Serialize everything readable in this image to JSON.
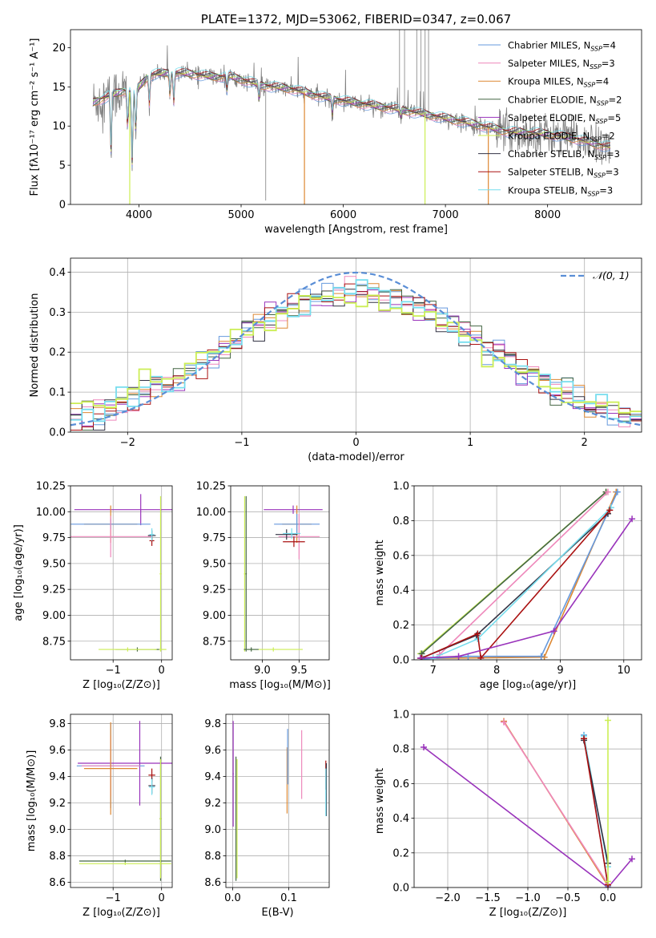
{
  "palette": {
    "chab_miles": "#6699dd",
    "salp_miles": "#ee88bb",
    "krou_miles": "#dd8833",
    "chab_elodie": "#446644",
    "salp_elodie": "#9933bb",
    "krou_elodie": "#ccee55",
    "chab_stelib": "#333344",
    "salp_stelib": "#aa1111",
    "krou_stelib": "#77ddee",
    "data": "#808080",
    "gauss": "#5a8ed6"
  },
  "chart_data": [
    {
      "id": "spectrum",
      "type": "line",
      "title": "PLATE=1372, MJD=53062, FIBERID=0347, z=0.067",
      "xlabel": "wavelength [Angstrom, rest frame]",
      "ylabel": "Flux [fλ10⁻¹⁷ erg cm⁻² s⁻¹ A⁻¹]",
      "xlim": [
        3330,
        8920
      ],
      "ylim": [
        0,
        22.3
      ],
      "xticks": [
        4000,
        5000,
        6000,
        7000,
        8000
      ],
      "yticks": [
        0,
        5,
        10,
        15,
        20
      ],
      "grid": false,
      "legend": {
        "placement": "top-right",
        "entries": [
          {
            "label": "Chabrier MILES, N",
            "sub": "SSP",
            "val": "=4",
            "color": "chab_miles"
          },
          {
            "label": "Salpeter MILES, N",
            "sub": "SSP",
            "val": "=3",
            "color": "salp_miles"
          },
          {
            "label": "Kroupa MILES, N",
            "sub": "SSP",
            "val": "=4",
            "color": "krou_miles"
          },
          {
            "label": "Chabrier ELODIE, N",
            "sub": "SSP",
            "val": "=2",
            "color": "chab_elodie"
          },
          {
            "label": "Salpeter ELODIE, N",
            "sub": "SSP",
            "val": "=5",
            "color": "salp_elodie"
          },
          {
            "label": "Kroupa ELODIE, N",
            "sub": "SSP",
            "val": "=2",
            "color": "krou_elodie"
          },
          {
            "label": "Chabrier STELIB, N",
            "sub": "SSP",
            "val": "=3",
            "color": "chab_stelib"
          },
          {
            "label": "Salpeter STELIB, N",
            "sub": "SSP",
            "val": "=3",
            "color": "salp_stelib"
          },
          {
            "label": "Kroupa STELIB, N",
            "sub": "SSP",
            "val": "=3",
            "color": "krou_stelib"
          }
        ]
      },
      "continuum": [
        [
          3550,
          13.0
        ],
        [
          3700,
          13.8
        ],
        [
          3850,
          14.5
        ],
        [
          3950,
          14.2
        ],
        [
          4100,
          16.5
        ],
        [
          4300,
          16.8
        ],
        [
          4500,
          16.7
        ],
        [
          4700,
          16.3
        ],
        [
          4900,
          16.3
        ],
        [
          5200,
          15.2
        ],
        [
          5500,
          14.7
        ],
        [
          5800,
          13.7
        ],
        [
          6100,
          13.0
        ],
        [
          6500,
          12.2
        ],
        [
          6800,
          11.5
        ],
        [
          7000,
          11.0
        ],
        [
          7300,
          10.2
        ],
        [
          7600,
          9.3
        ],
        [
          8000,
          9.0
        ],
        [
          8300,
          8.3
        ],
        [
          8500,
          7.6
        ],
        [
          8620,
          7.3
        ]
      ],
      "absorption": [
        [
          3727,
          8
        ],
        [
          3889,
          5
        ],
        [
          3934,
          10
        ],
        [
          3969,
          6
        ],
        [
          4102,
          4
        ],
        [
          4304,
          3
        ],
        [
          4341,
          4
        ],
        [
          4861,
          2
        ],
        [
          5175,
          2
        ],
        [
          5893,
          2
        ],
        [
          6563,
          1
        ]
      ],
      "model_spikes": [
        [
          3910,
          "krou_elodie"
        ],
        [
          5620,
          "krou_miles"
        ],
        [
          6800,
          "krou_elodie"
        ],
        [
          7420,
          "krou_miles"
        ]
      ],
      "data_spikes": [
        [
          5240,
          0.5
        ],
        [
          6550,
          24
        ],
        [
          6600,
          24
        ],
        [
          6720,
          24
        ],
        [
          6760,
          24
        ],
        [
          6800,
          24
        ],
        [
          6835,
          24
        ]
      ]
    },
    {
      "id": "residuals",
      "type": "histogram",
      "xlabel": "(data-model)/error",
      "ylabel": "Normed distribution",
      "xlim": [
        -2.5,
        2.5
      ],
      "ylim": [
        0,
        0.435
      ],
      "xticks": [
        -2,
        -1,
        0,
        1,
        2
      ],
      "yticks": [
        0.0,
        0.1,
        0.2,
        0.3,
        0.4
      ],
      "grid": true,
      "bin_width": 0.1,
      "gaussian_label": "𝒩(0, 1)",
      "series_order": [
        "chab_miles",
        "salp_miles",
        "krou_miles",
        "chab_elodie",
        "salp_elodie",
        "chab_stelib",
        "salp_stelib",
        "krou_stelib",
        "krou_elodie"
      ]
    },
    {
      "id": "age_vs_Z",
      "type": "scatter",
      "xlabel": "Z [log₁₀(Z/Z⊙)]",
      "ylabel": "age  [log₁₀(age/yr)]",
      "xlim": [
        -1.88,
        0.22
      ],
      "ylim": [
        8.57,
        10.25
      ],
      "xticks": [
        -1,
        0
      ],
      "yticks": [
        8.75,
        9.0,
        9.25,
        9.5,
        9.75,
        10.0,
        10.25
      ],
      "points": [
        {
          "c": "salp_elodie",
          "x": -0.43,
          "y": 10.02,
          "xerr": 1.37,
          "yerr": 0.15
        },
        {
          "c": "krou_miles",
          "x": -1.05,
          "y": 9.88,
          "xerr": 0.55,
          "yerr": 0.18
        },
        {
          "c": "chab_miles",
          "x": -1.05,
          "y": 9.88,
          "xerr": 0.82,
          "yerr": 0.05
        },
        {
          "c": "salp_miles",
          "x": -1.05,
          "y": 9.76,
          "xerr": 0.85,
          "yerr": 0.2
        },
        {
          "c": "chab_stelib",
          "x": -0.2,
          "y": 9.77,
          "xerr": 0.08,
          "yerr": 0.05
        },
        {
          "c": "salp_stelib",
          "x": -0.2,
          "y": 9.72,
          "xerr": 0.05,
          "yerr": 0.05
        },
        {
          "c": "krou_stelib",
          "x": -0.2,
          "y": 9.78,
          "xerr": 0.05,
          "yerr": 0.06
        },
        {
          "c": "krou_elodie",
          "x": -0.02,
          "y": 8.67,
          "xerr": 0.12,
          "yerr": 0.02
        },
        {
          "c": "chab_elodie",
          "x": -0.5,
          "y": 8.67,
          "xerr": 0.45,
          "yerr": 0.02
        },
        {
          "c": "krou_elodie",
          "x": -0.7,
          "y": 8.67,
          "xerr": 0.6,
          "yerr": 0.02
        },
        {
          "c": "krou_elodie",
          "x": -0.02,
          "y": 9.4,
          "xerr": 0.02,
          "yerr": 0.75
        }
      ]
    },
    {
      "id": "age_vs_mass",
      "type": "scatter",
      "xlabel": "mass [log₁₀(M/M⊙)]",
      "ylabel": "",
      "xlim": [
        8.57,
        9.91
      ],
      "ylim": [
        8.57,
        10.25
      ],
      "xticks": [
        9.0,
        9.5
      ],
      "yticks": [
        8.75,
        9.0,
        9.25,
        9.5,
        9.75,
        10.0,
        10.25
      ],
      "points": [
        {
          "c": "salp_elodie",
          "x": 9.42,
          "y": 10.02,
          "xerr": 0.4,
          "yerr": 0.04
        },
        {
          "c": "krou_miles",
          "x": 9.47,
          "y": 9.88,
          "xerr": 0.2,
          "yerr": 0.18
        },
        {
          "c": "chab_miles",
          "x": 9.47,
          "y": 9.88,
          "xerr": 0.31,
          "yerr": 0.1
        },
        {
          "c": "salp_miles",
          "x": 9.5,
          "y": 9.76,
          "xerr": 0.28,
          "yerr": 0.22
        },
        {
          "c": "chab_stelib",
          "x": 9.33,
          "y": 9.78,
          "xerr": 0.15,
          "yerr": 0.05
        },
        {
          "c": "salp_stelib",
          "x": 9.43,
          "y": 9.71,
          "xerr": 0.15,
          "yerr": 0.05
        },
        {
          "c": "krou_stelib",
          "x": 9.4,
          "y": 9.79,
          "xerr": 0.12,
          "yerr": 0.05
        },
        {
          "c": "chab_elodie",
          "x": 8.78,
          "y": 9.4,
          "xerr": 0.01,
          "yerr": 0.75
        },
        {
          "c": "krou_elodie",
          "x": 8.76,
          "y": 9.4,
          "xerr": 0.01,
          "yerr": 0.75
        },
        {
          "c": "krou_elodie",
          "x": 9.15,
          "y": 8.67,
          "xerr": 0.4,
          "yerr": 0.02
        },
        {
          "c": "chab_elodie",
          "x": 8.85,
          "y": 8.67,
          "xerr": 0.1,
          "yerr": 0.02
        }
      ]
    },
    {
      "id": "mass_weight_vs_age",
      "type": "line",
      "xlabel": "age  [log₁₀(age/yr)]",
      "ylabel": "mass weight",
      "xlim": [
        6.7,
        10.28
      ],
      "ylim": [
        0,
        1.0
      ],
      "xticks": [
        7,
        8,
        9,
        10
      ],
      "yticks": [
        0.0,
        0.2,
        0.4,
        0.6,
        0.8,
        1.0
      ],
      "series": [
        {
          "c": "krou_elodie",
          "x": [
            6.8,
            9.72
          ],
          "y": [
            0.035,
            0.965
          ]
        },
        {
          "c": "chab_elodie",
          "x": [
            6.82,
            9.72
          ],
          "y": [
            0.035,
            0.965
          ]
        },
        {
          "c": "salp_miles",
          "x": [
            7.1,
            9.75
          ],
          "y": [
            0.03,
            0.965
          ]
        },
        {
          "c": "krou_miles",
          "x": [
            6.8,
            8.75,
            9.88
          ],
          "y": [
            0.008,
            0.015,
            0.965
          ]
        },
        {
          "c": "chab_miles",
          "x": [
            6.85,
            7.55,
            8.7,
            9.9
          ],
          "y": [
            0.005,
            0.02,
            0.02,
            0.965
          ]
        },
        {
          "c": "chab_stelib",
          "x": [
            6.82,
            7.68,
            9.75
          ],
          "y": [
            0.01,
            0.14,
            0.84
          ]
        },
        {
          "c": "krou_stelib",
          "x": [
            7.0,
            7.7,
            9.8
          ],
          "y": [
            0.01,
            0.12,
            0.875
          ]
        },
        {
          "c": "salp_stelib",
          "x": [
            6.82,
            7.7,
            7.75,
            9.78
          ],
          "y": [
            0.01,
            0.15,
            0.01,
            0.86
          ]
        },
        {
          "c": "salp_elodie",
          "x": [
            6.8,
            7.4,
            8.9,
            10.13
          ],
          "y": [
            0.01,
            0.02,
            0.165,
            0.81
          ]
        }
      ]
    },
    {
      "id": "mass_vs_Z",
      "type": "scatter",
      "xlabel": "Z [log₁₀(Z/Z⊙)]",
      "ylabel": "mass [log₁₀(M/M⊙)]",
      "xlim": [
        -1.88,
        0.22
      ],
      "ylim": [
        8.56,
        9.87
      ],
      "xticks": [
        -1,
        0
      ],
      "yticks": [
        8.6,
        8.8,
        9.0,
        9.2,
        9.4,
        9.6,
        9.8
      ],
      "points": [
        {
          "c": "salp_elodie",
          "x": -0.45,
          "y": 9.5,
          "xerr": 1.28,
          "yerr": 0.32
        },
        {
          "c": "chab_miles",
          "x": -1.05,
          "y": 9.48,
          "xerr": 0.7,
          "yerr": 0.32
        },
        {
          "c": "salp_miles",
          "x": -1.05,
          "y": 9.48,
          "xerr": 0.6,
          "yerr": 0.23
        },
        {
          "c": "krou_miles",
          "x": -1.05,
          "y": 9.46,
          "xerr": 0.55,
          "yerr": 0.35
        },
        {
          "c": "salp_stelib",
          "x": -0.2,
          "y": 9.41,
          "xerr": 0.07,
          "yerr": 0.05
        },
        {
          "c": "chab_stelib",
          "x": -0.2,
          "y": 9.33,
          "xerr": 0.07,
          "yerr": 0.06
        },
        {
          "c": "krou_stelib",
          "x": -0.2,
          "y": 9.32,
          "xerr": 0.06,
          "yerr": 0.06
        },
        {
          "c": "chab_elodie",
          "x": -0.75,
          "y": 8.76,
          "xerr": 0.95,
          "yerr": 0.01
        },
        {
          "c": "krou_elodie",
          "x": -0.75,
          "y": 8.74,
          "xerr": 0.95,
          "yerr": 0.01
        },
        {
          "c": "chab_elodie",
          "x": -0.02,
          "y": 9.08,
          "xerr": 0.02,
          "yerr": 0.47
        },
        {
          "c": "krou_elodie",
          "x": -0.02,
          "y": 9.08,
          "xerr": 0.02,
          "yerr": 0.45
        }
      ]
    },
    {
      "id": "mass_vs_ebv",
      "type": "scatter",
      "xlabel": "E(B-V)",
      "ylabel": "",
      "xlim": [
        -0.012,
        0.172
      ],
      "ylim": [
        8.56,
        9.87
      ],
      "xticks": [
        0.0,
        0.1
      ],
      "yticks": [
        8.6,
        8.8,
        9.0,
        9.2,
        9.4,
        9.6,
        9.8
      ],
      "points": [
        {
          "c": "salp_elodie",
          "x": 0.001,
          "y": 9.42,
          "xerr": 0.001,
          "yerr": 0.4
        },
        {
          "c": "chab_elodie",
          "x": 0.006,
          "y": 9.08,
          "xerr": 0.0005,
          "yerr": 0.47
        },
        {
          "c": "krou_elodie",
          "x": 0.008,
          "y": 9.08,
          "xerr": 0.0005,
          "yerr": 0.45
        },
        {
          "c": "krou_miles",
          "x": 0.097,
          "y": 9.37,
          "xerr": 0.0005,
          "yerr": 0.25
        },
        {
          "c": "chab_miles",
          "x": 0.098,
          "y": 9.55,
          "xerr": 0.0005,
          "yerr": 0.21
        },
        {
          "c": "salp_miles",
          "x": 0.123,
          "y": 9.49,
          "xerr": 0.0005,
          "yerr": 0.26
        },
        {
          "c": "salp_stelib",
          "x": 0.166,
          "y": 9.41,
          "xerr": 0.0005,
          "yerr": 0.11
        },
        {
          "c": "chab_stelib",
          "x": 0.167,
          "y": 9.3,
          "xerr": 0.0005,
          "yerr": 0.2
        },
        {
          "c": "krou_stelib",
          "x": 0.166,
          "y": 9.28,
          "xerr": 0.0005,
          "yerr": 0.18
        }
      ]
    },
    {
      "id": "mass_weight_vs_Z",
      "type": "line",
      "xlabel": "Z [log₁₀(Z/Z⊙)]",
      "ylabel": "mass weight",
      "xlim": [
        -2.42,
        0.42
      ],
      "ylim": [
        0,
        1.0
      ],
      "xticks": [
        -2.0,
        -1.5,
        -1.0,
        -0.5,
        0.0
      ],
      "yticks": [
        0.0,
        0.2,
        0.4,
        0.6,
        0.8,
        1.0
      ],
      "series": [
        {
          "c": "salp_elodie",
          "x": [
            -2.3,
            0.0,
            0.3
          ],
          "y": [
            0.81,
            0.0,
            0.165
          ]
        },
        {
          "c": "krou_miles",
          "x": [
            -1.3,
            0.0
          ],
          "y": [
            0.96,
            0.01
          ]
        },
        {
          "c": "salp_miles",
          "x": [
            -1.3,
            0.0
          ],
          "y": [
            0.955,
            0.02
          ]
        },
        {
          "c": "chab_miles",
          "x": [
            -0.3,
            0.0
          ],
          "y": [
            0.88,
            0.01
          ]
        },
        {
          "c": "krou_stelib",
          "x": [
            -0.3,
            0.0
          ],
          "y": [
            0.875,
            0.12
          ]
        },
        {
          "c": "chab_stelib",
          "x": [
            -0.3,
            0.0
          ],
          "y": [
            0.85,
            0.14
          ]
        },
        {
          "c": "salp_stelib",
          "x": [
            -0.3,
            0.0
          ],
          "y": [
            0.86,
            0.015
          ]
        },
        {
          "c": "krou_elodie",
          "x": [
            0.0,
            0.0
          ],
          "y": [
            0.965,
            0.035
          ]
        }
      ]
    }
  ]
}
